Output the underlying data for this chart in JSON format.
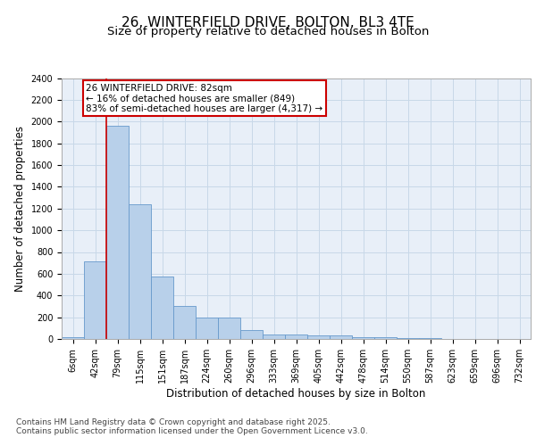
{
  "title_line1": "26, WINTERFIELD DRIVE, BOLTON, BL3 4TE",
  "title_line2": "Size of property relative to detached houses in Bolton",
  "xlabel": "Distribution of detached houses by size in Bolton",
  "ylabel": "Number of detached properties",
  "categories": [
    "6sqm",
    "42sqm",
    "79sqm",
    "115sqm",
    "151sqm",
    "187sqm",
    "224sqm",
    "260sqm",
    "296sqm",
    "333sqm",
    "369sqm",
    "405sqm",
    "442sqm",
    "478sqm",
    "514sqm",
    "550sqm",
    "587sqm",
    "623sqm",
    "659sqm",
    "696sqm",
    "732sqm"
  ],
  "values": [
    15,
    710,
    1960,
    1240,
    575,
    305,
    200,
    200,
    85,
    45,
    38,
    35,
    30,
    20,
    20,
    5,
    5,
    0,
    0,
    0,
    0
  ],
  "bar_color": "#b8d0ea",
  "bar_edge_color": "#6699cc",
  "highlight_bar_index": 2,
  "highlight_color": "#cc0000",
  "annotation_text": "26 WINTERFIELD DRIVE: 82sqm\n← 16% of detached houses are smaller (849)\n83% of semi-detached houses are larger (4,317) →",
  "annotation_box_color": "#cc0000",
  "ylim": [
    0,
    2400
  ],
  "yticks": [
    0,
    200,
    400,
    600,
    800,
    1000,
    1200,
    1400,
    1600,
    1800,
    2000,
    2200,
    2400
  ],
  "grid_color": "#c8d8e8",
  "background_color": "#e8eff8",
  "footer_line1": "Contains HM Land Registry data © Crown copyright and database right 2025.",
  "footer_line2": "Contains public sector information licensed under the Open Government Licence v3.0.",
  "title_fontsize": 11,
  "subtitle_fontsize": 9.5,
  "axis_label_fontsize": 8.5,
  "tick_fontsize": 7,
  "annotation_fontsize": 7.5,
  "footer_fontsize": 6.5
}
